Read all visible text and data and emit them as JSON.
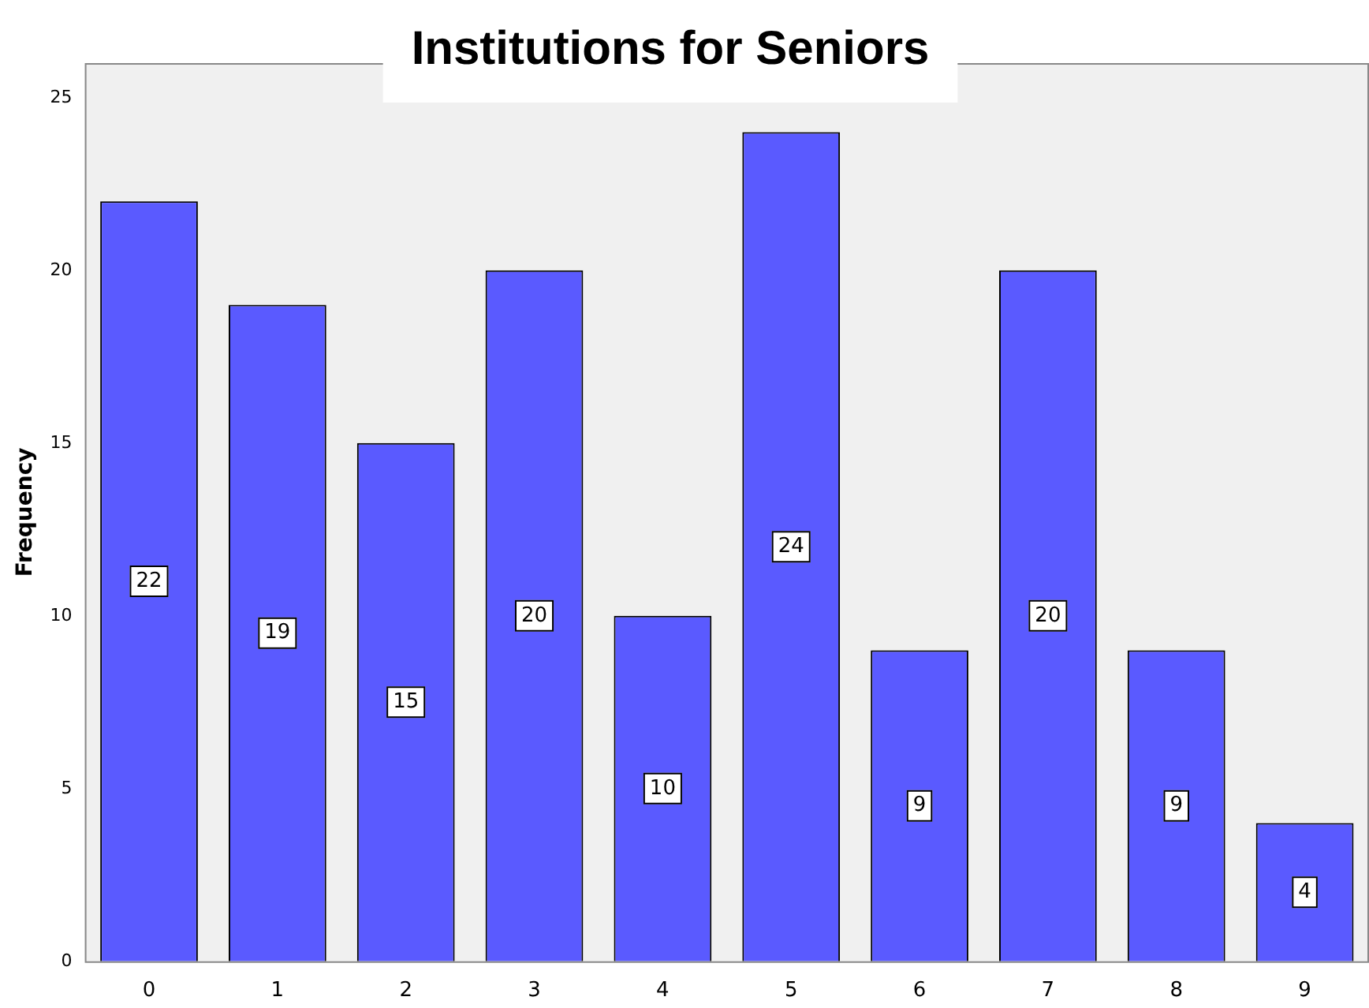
{
  "chart_data": {
    "type": "bar",
    "title": "Institutions for Seniors",
    "ylabel": "Frequency",
    "categories": [
      "0",
      "1",
      "2",
      "3",
      "4",
      "5",
      "6",
      "7",
      "8",
      "9"
    ],
    "values": [
      22,
      19,
      15,
      20,
      10,
      24,
      9,
      20,
      9,
      4
    ],
    "color": "#5a5aff",
    "ylim": [
      0,
      26
    ],
    "yticks": [
      0,
      5,
      10,
      15,
      20,
      25
    ],
    "grid": false,
    "data_labels": true,
    "legend": false
  }
}
